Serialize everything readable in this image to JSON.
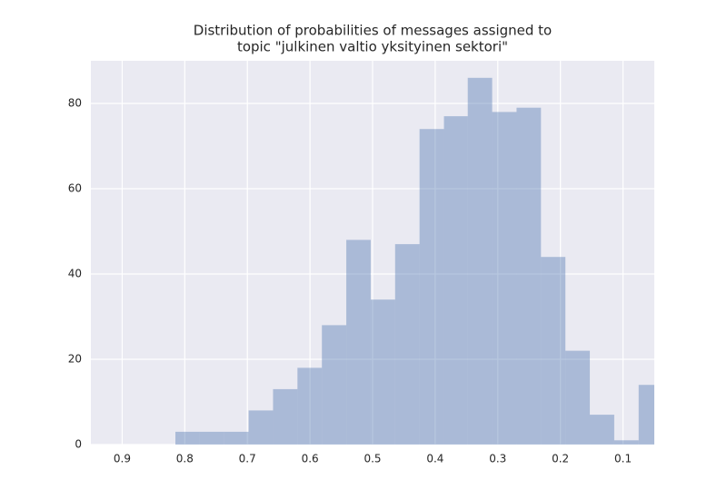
{
  "chart_data": {
    "type": "histogram",
    "title": [
      "Distribution of probabilities of messages assigned to",
      "topic \"julkinen valtio yksityinen sektori\""
    ],
    "bins": [
      0.036,
      0.075,
      0.114,
      0.153,
      0.192,
      0.231,
      0.27,
      0.309,
      0.348,
      0.386,
      0.425,
      0.464,
      0.503,
      0.542,
      0.581,
      0.62,
      0.659,
      0.698,
      0.737,
      0.776,
      0.815
    ],
    "values": [
      14,
      1,
      7,
      22,
      44,
      79,
      78,
      86,
      77,
      74,
      47,
      34,
      48,
      28,
      18,
      13,
      8,
      3,
      3,
      3
    ],
    "color": "#4c72b0",
    "xlim": [
      0.95,
      0.05
    ],
    "xticks": [
      0.9,
      0.8,
      0.7,
      0.6,
      0.5,
      0.4,
      0.3,
      0.2,
      0.1
    ],
    "ylim": [
      0,
      90
    ],
    "yticks": [
      0,
      20,
      40,
      60,
      80
    ],
    "grid": true
  }
}
